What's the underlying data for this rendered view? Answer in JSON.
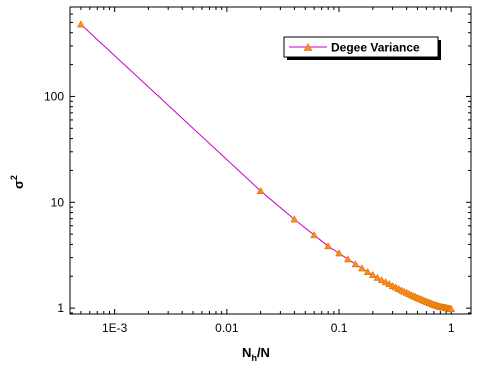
{
  "chart_data": {
    "type": "line",
    "title": "",
    "xlabel": "N_h/N",
    "ylabel": "σ^2",
    "xscale": "log",
    "yscale": "log",
    "xlim": [
      0.0004,
      1.5
    ],
    "ylim": [
      0.88,
      700
    ],
    "grid": false,
    "legend_position": "top-right",
    "colors": {
      "line": "#cc00cc",
      "marker": "#ff8c1a",
      "marker_edge": "#cc6600"
    },
    "x_ticks": [
      {
        "value": 0.001,
        "label": "1E-3"
      },
      {
        "value": 0.01,
        "label": "0.01"
      },
      {
        "value": 0.1,
        "label": "0.1"
      },
      {
        "value": 1,
        "label": "1"
      }
    ],
    "y_ticks": [
      {
        "value": 1,
        "label": "1"
      },
      {
        "value": 10,
        "label": "10"
      },
      {
        "value": 100,
        "label": "100"
      }
    ],
    "series": [
      {
        "name": "Degee Variance",
        "marker": "triangle",
        "x": [
          0.0005,
          0.02,
          0.04,
          0.06,
          0.08,
          0.1,
          0.12,
          0.14,
          0.16,
          0.18,
          0.2,
          0.22,
          0.24,
          0.26,
          0.28,
          0.3,
          0.32,
          0.34,
          0.36,
          0.38,
          0.4,
          0.42,
          0.44,
          0.46,
          0.48,
          0.5,
          0.52,
          0.54,
          0.56,
          0.58,
          0.6,
          0.62,
          0.64,
          0.66,
          0.68,
          0.7,
          0.72,
          0.74,
          0.76,
          0.78,
          0.8,
          0.82,
          0.84,
          0.86,
          0.88,
          0.9,
          0.92,
          0.94,
          0.96,
          0.98,
          1.0
        ],
        "y": [
          480,
          12.8,
          6.9,
          4.9,
          3.85,
          3.3,
          2.9,
          2.6,
          2.38,
          2.2,
          2.06,
          1.94,
          1.84,
          1.76,
          1.69,
          1.62,
          1.57,
          1.52,
          1.47,
          1.43,
          1.4,
          1.36,
          1.33,
          1.3,
          1.28,
          1.25,
          1.23,
          1.21,
          1.19,
          1.17,
          1.15,
          1.14,
          1.12,
          1.11,
          1.09,
          1.08,
          1.07,
          1.06,
          1.05,
          1.04,
          1.03,
          1.025,
          1.02,
          1.015,
          1.01,
          1.005,
          1.0,
          0.995,
          0.99,
          0.985,
          0.98
        ]
      }
    ]
  }
}
